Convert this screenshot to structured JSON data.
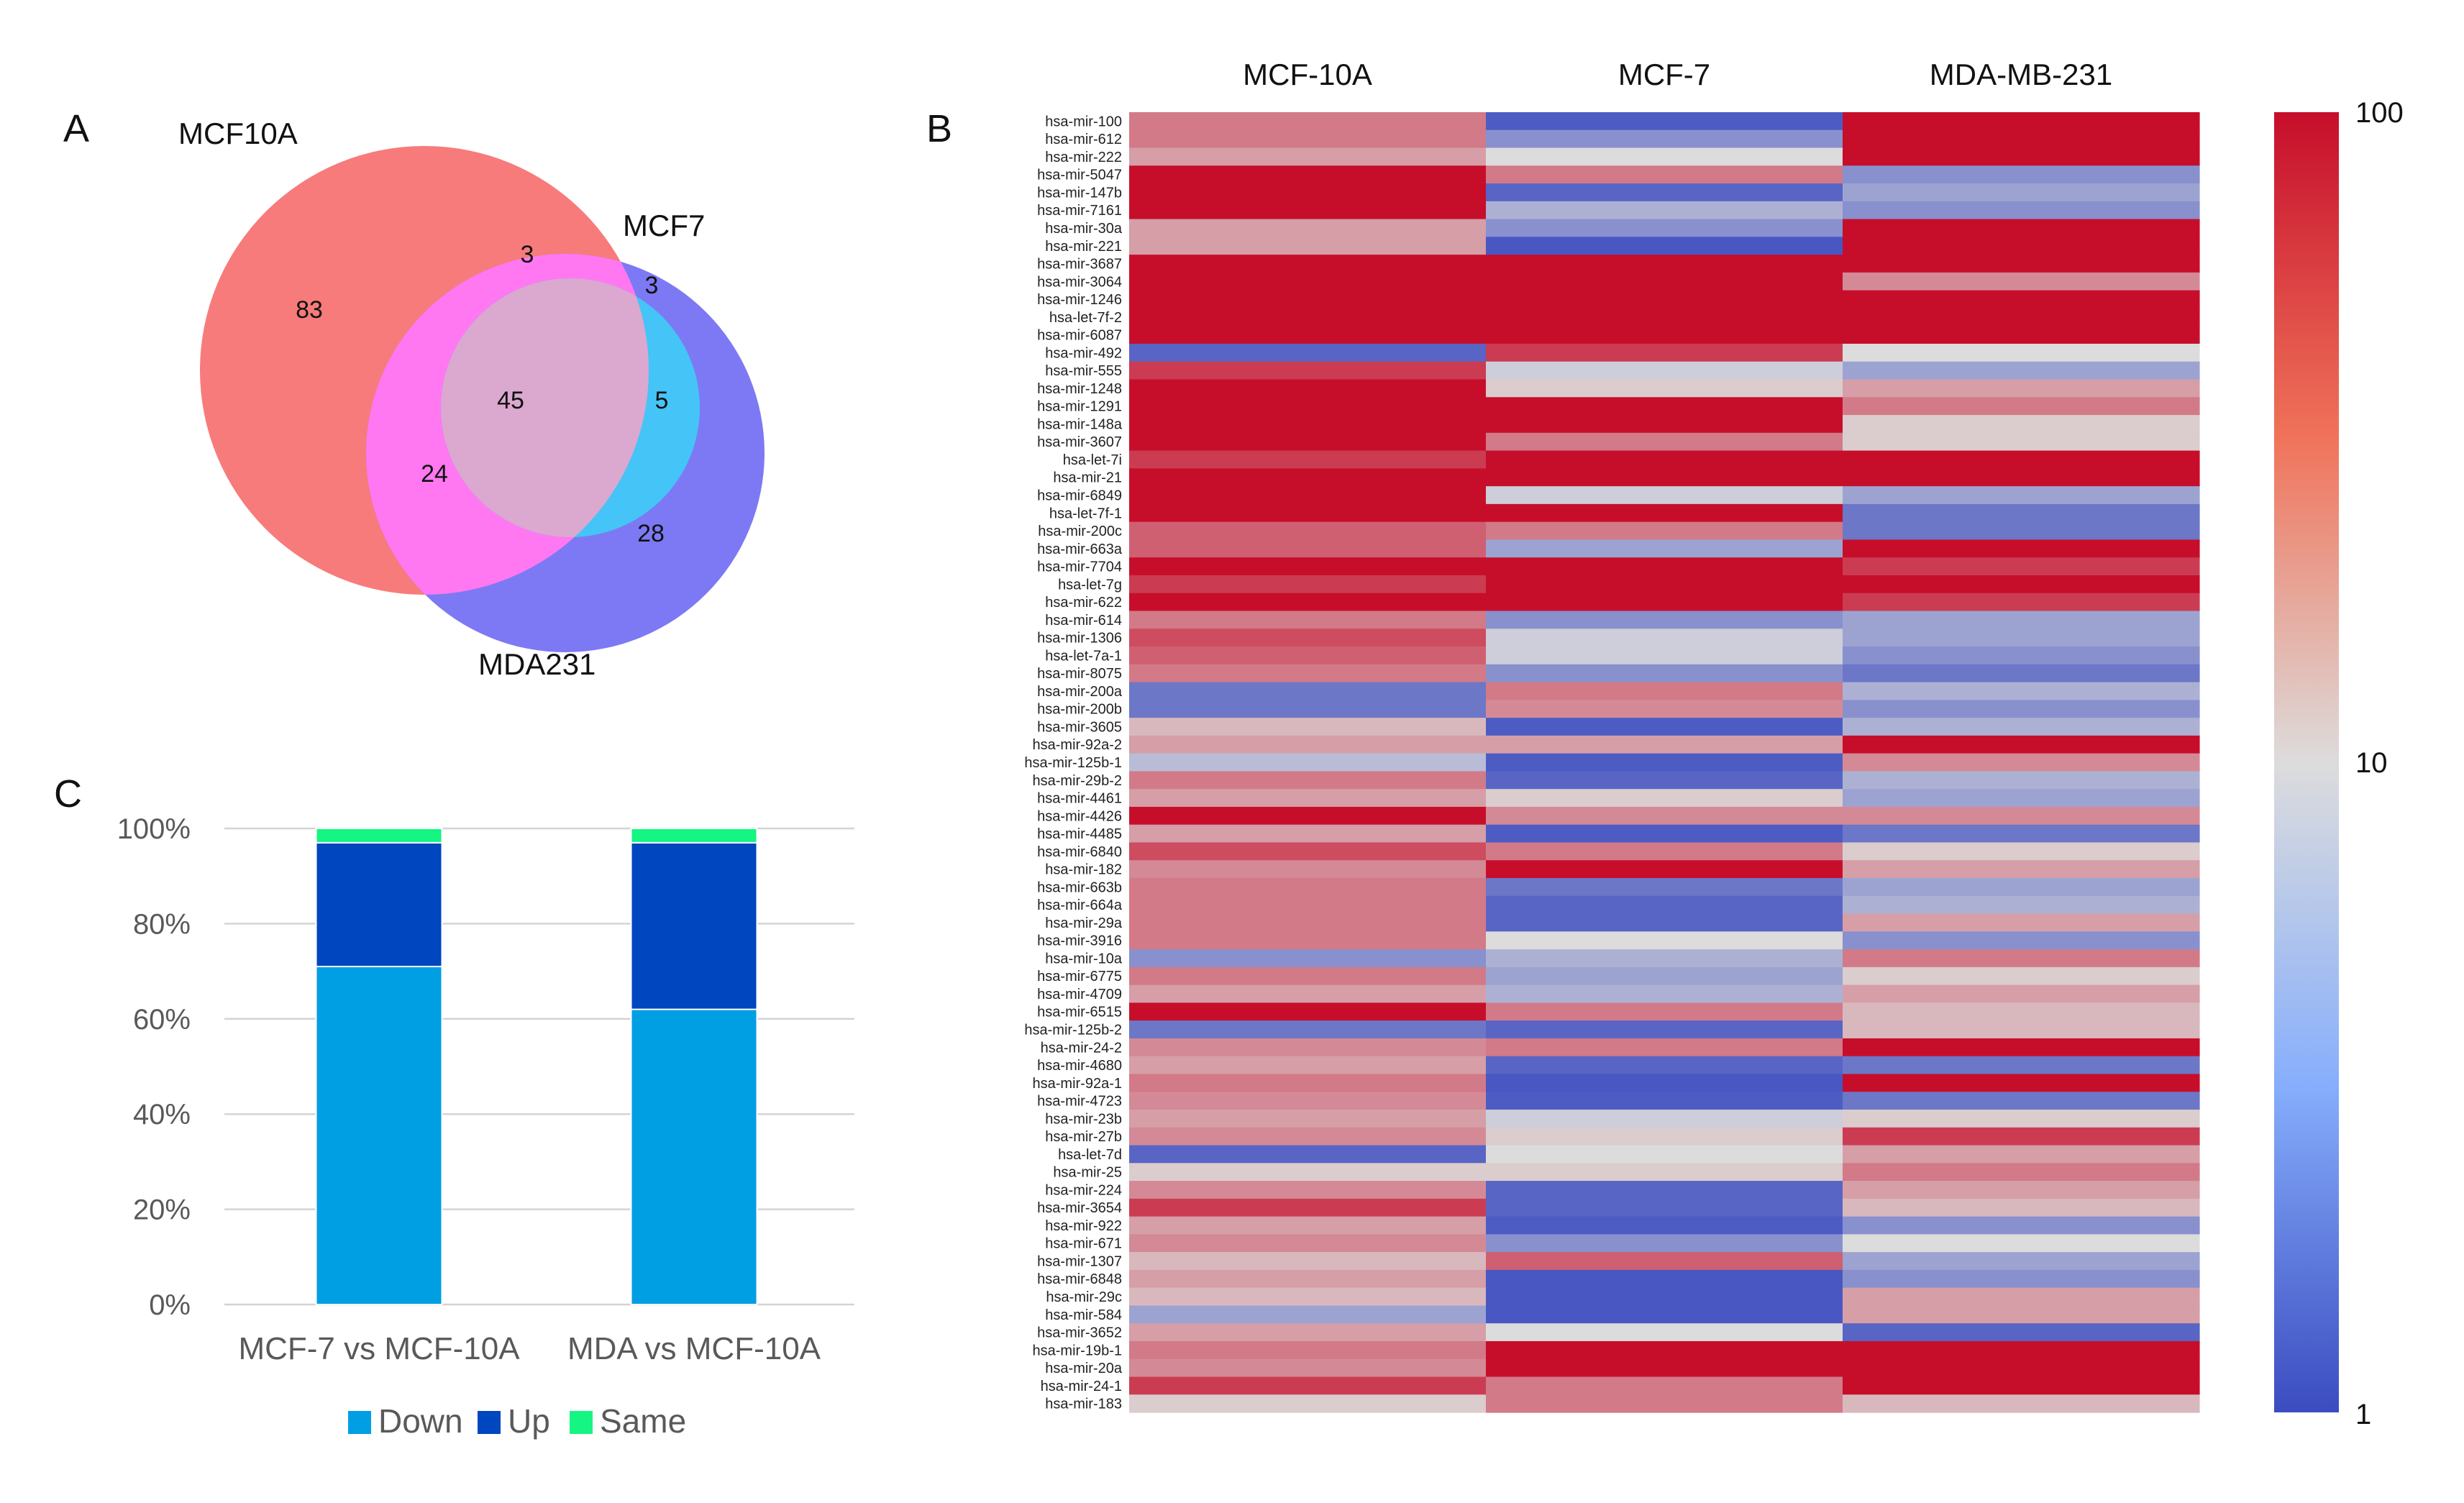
{
  "chart_data": [
    {
      "panel": "A",
      "type": "venn",
      "sets": [
        "MCF10A",
        "MCF7",
        "MDA231"
      ],
      "regions": {
        "MCF10A_only": 83,
        "MCF10A_MCF7": 3,
        "MCF7_only": 3,
        "all_three": 45,
        "MCF7_MDA231": 5,
        "MCF10A_MDA231": 24,
        "MDA231_only": 28
      },
      "colors": {
        "MCF10A_only": "#f77b7b",
        "MCF10A_MCF7": "#fbbf7b",
        "MCF7_only": "#2ee06b",
        "all_three": "#dba8cf",
        "MCF7_MDA231": "#45c4f7",
        "MCF10A_MDA231": "#ff78f2",
        "MDA231_only": "#7d79f4"
      }
    },
    {
      "panel": "B",
      "type": "heatmap",
      "columns": [
        "MCF-10A",
        "MCF-7",
        "MDA-MB-231"
      ],
      "rows": [
        "hsa-mir-100",
        "hsa-mir-612",
        "hsa-mir-222",
        "hsa-mir-5047",
        "hsa-mir-147b",
        "hsa-mir-7161",
        "hsa-mir-30a",
        "hsa-mir-221",
        "hsa-mir-3687",
        "hsa-mir-3064",
        "hsa-mir-1246",
        "hsa-let-7f-2",
        "hsa-mir-6087",
        "hsa-mir-492",
        "hsa-mir-555",
        "hsa-mir-1248",
        "hsa-mir-1291",
        "hsa-mir-148a",
        "hsa-mir-3607",
        "hsa-let-7i",
        "hsa-mir-21",
        "hsa-mir-6849",
        "hsa-let-7f-1",
        "hsa-mir-200c",
        "hsa-mir-663a",
        "hsa-mir-7704",
        "hsa-let-7g",
        "hsa-mir-622",
        "hsa-mir-614",
        "hsa-mir-1306",
        "hsa-let-7a-1",
        "hsa-mir-8075",
        "hsa-mir-200a",
        "hsa-mir-200b",
        "hsa-mir-3605",
        "hsa-mir-92a-2",
        "hsa-mir-125b-1",
        "hsa-mir-29b-2",
        "hsa-mir-4461",
        "hsa-mir-4426",
        "hsa-mir-4485",
        "hsa-mir-6840",
        "hsa-mir-182",
        "hsa-mir-663b",
        "hsa-mir-664a",
        "hsa-mir-29a",
        "hsa-mir-3916",
        "hsa-mir-10a",
        "hsa-mir-6775",
        "hsa-mir-4709",
        "hsa-mir-6515",
        "hsa-mir-125b-2",
        "hsa-mir-24-2",
        "hsa-mir-4680",
        "hsa-mir-92a-1",
        "hsa-mir-4723",
        "hsa-mir-23b",
        "hsa-mir-27b",
        "hsa-let-7d",
        "hsa-mir-25",
        "hsa-mir-224",
        "hsa-mir-3654",
        "hsa-mir-922",
        "hsa-mir-671",
        "hsa-mir-1307",
        "hsa-mir-6848",
        "hsa-mir-29c",
        "hsa-mir-584",
        "hsa-mir-3652",
        "hsa-mir-19b-1",
        "hsa-mir-20a",
        "hsa-mir-24-1",
        "hsa-mir-183"
      ],
      "values": [
        [
          30,
          1.3,
          100
        ],
        [
          30,
          3,
          100
        ],
        [
          20,
          10,
          100
        ],
        [
          100,
          30,
          3
        ],
        [
          100,
          1.5,
          4
        ],
        [
          100,
          5,
          3
        ],
        [
          20,
          3,
          100
        ],
        [
          20,
          1.2,
          100
        ],
        [
          100,
          100,
          100
        ],
        [
          100,
          100,
          25
        ],
        [
          100,
          100,
          100
        ],
        [
          100,
          100,
          100
        ],
        [
          100,
          100,
          100
        ],
        [
          1.5,
          60,
          10
        ],
        [
          60,
          8,
          4
        ],
        [
          100,
          12,
          20
        ],
        [
          100,
          100,
          30
        ],
        [
          100,
          100,
          12
        ],
        [
          100,
          30,
          12
        ],
        [
          60,
          100,
          100
        ],
        [
          100,
          100,
          100
        ],
        [
          100,
          8,
          4
        ],
        [
          100,
          100,
          2
        ],
        [
          40,
          30,
          2
        ],
        [
          40,
          4,
          100
        ],
        [
          100,
          100,
          60
        ],
        [
          60,
          100,
          100
        ],
        [
          100,
          100,
          60
        ],
        [
          30,
          3,
          4
        ],
        [
          50,
          8,
          4
        ],
        [
          40,
          8,
          3
        ],
        [
          30,
          3,
          2
        ],
        [
          2,
          30,
          5
        ],
        [
          2,
          25,
          3
        ],
        [
          15,
          1.3,
          5
        ],
        [
          20,
          20,
          100
        ],
        [
          6,
          1.3,
          25
        ],
        [
          30,
          1.5,
          5
        ],
        [
          20,
          12,
          4
        ],
        [
          100,
          25,
          25
        ],
        [
          20,
          1.3,
          2
        ],
        [
          50,
          30,
          12
        ],
        [
          25,
          100,
          20
        ],
        [
          30,
          2,
          4
        ],
        [
          30,
          1.5,
          5
        ],
        [
          30,
          1.5,
          20
        ],
        [
          30,
          10,
          3
        ],
        [
          3,
          5,
          30
        ],
        [
          30,
          4,
          12
        ],
        [
          20,
          5,
          20
        ],
        [
          100,
          30,
          15
        ],
        [
          2,
          1.5,
          15
        ],
        [
          25,
          30,
          100
        ],
        [
          20,
          1.5,
          2
        ],
        [
          30,
          1.2,
          100
        ],
        [
          25,
          1.3,
          2
        ],
        [
          20,
          8,
          12
        ],
        [
          25,
          12,
          60
        ],
        [
          1.5,
          10,
          20
        ],
        [
          12,
          12,
          30
        ],
        [
          25,
          1.5,
          20
        ],
        [
          60,
          1.5,
          15
        ],
        [
          20,
          1.3,
          3
        ],
        [
          25,
          3,
          10
        ],
        [
          15,
          40,
          4
        ],
        [
          20,
          1.2,
          3
        ],
        [
          15,
          1.2,
          20
        ],
        [
          4,
          1.2,
          20
        ],
        [
          20,
          10,
          1.5
        ],
        [
          30,
          100,
          100
        ],
        [
          25,
          100,
          100
        ],
        [
          60,
          30,
          100
        ],
        [
          12,
          30,
          15
        ]
      ],
      "scale": "log",
      "colorbar": {
        "min": 1,
        "max": 100,
        "ticks": [
          "1",
          "10",
          "100"
        ]
      },
      "colors": {
        "low": "#3b4cc0",
        "mid": "#dddcdc",
        "high": "#c60e2b"
      }
    },
    {
      "panel": "C",
      "type": "bar",
      "stacked": true,
      "categories": [
        "MCF-7 vs MCF-10A",
        "MDA vs MCF-10A"
      ],
      "series": [
        {
          "name": "Down",
          "values": [
            71,
            62
          ],
          "color": "#009ee3"
        },
        {
          "name": "Up",
          "values": [
            26,
            35
          ],
          "color": "#0046be"
        },
        {
          "name": "Same",
          "values": [
            3,
            3
          ],
          "color": "#14f582"
        }
      ],
      "ylim": [
        0,
        100
      ],
      "yticks": [
        "0%",
        "20%",
        "40%",
        "60%",
        "80%",
        "100%"
      ],
      "legend": "bottom"
    }
  ],
  "panel_labels": {
    "a": "A",
    "b": "B",
    "c": "C"
  }
}
